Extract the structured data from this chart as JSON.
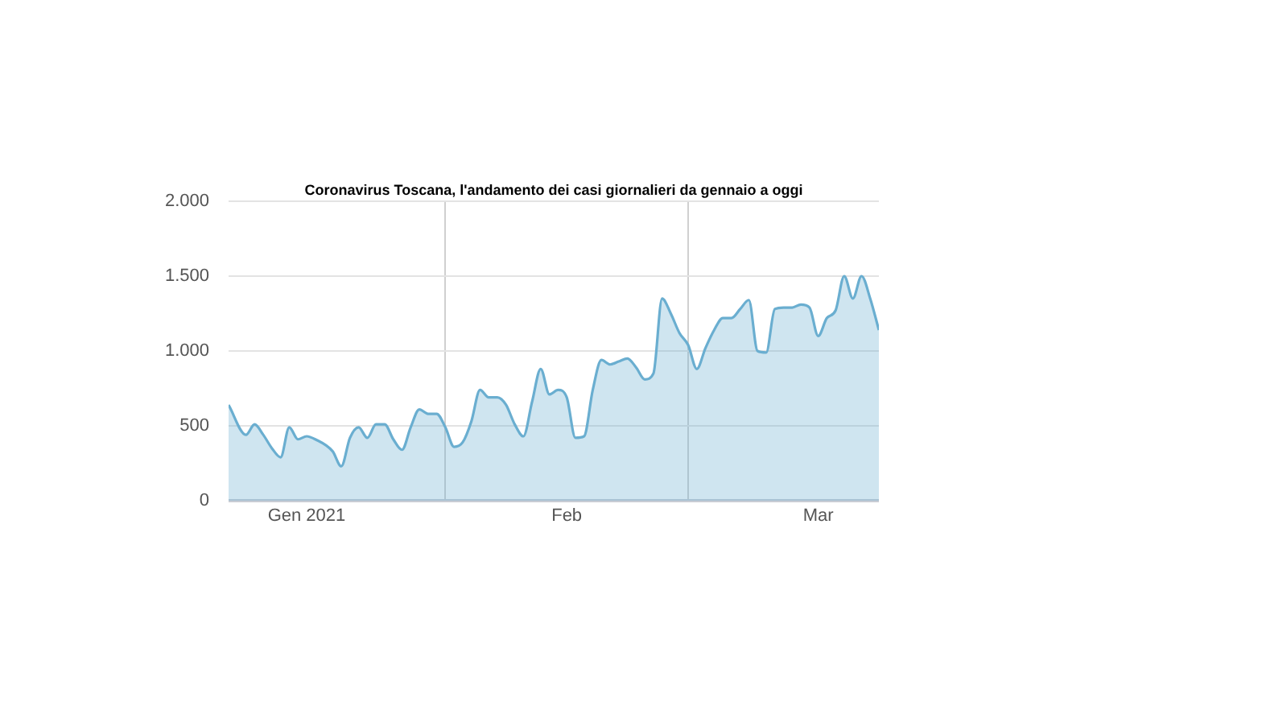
{
  "chart_data": {
    "type": "area",
    "title": "Coronavirus Toscana, l'andamento dei casi giornalieri da gennaio a oggi",
    "x": [
      "2021-01-07",
      "2021-01-09",
      "2021-01-10",
      "2021-01-11",
      "2021-01-12",
      "2021-01-13",
      "2021-01-14",
      "2021-01-15",
      "2021-01-16",
      "2021-01-17",
      "2021-01-19",
      "2021-01-20",
      "2021-01-21",
      "2021-01-22",
      "2021-01-23",
      "2021-01-24",
      "2021-01-25",
      "2021-01-26",
      "2021-01-27",
      "2021-01-28",
      "2021-01-29",
      "2021-01-30",
      "2021-01-31",
      "2021-02-01",
      "2021-02-02",
      "2021-02-03",
      "2021-02-04",
      "2021-02-05",
      "2021-02-06",
      "2021-02-07",
      "2021-02-08",
      "2021-02-09",
      "2021-02-10",
      "2021-02-11",
      "2021-02-12",
      "2021-02-13",
      "2021-02-14",
      "2021-02-15",
      "2021-02-16",
      "2021-02-17",
      "2021-02-18",
      "2021-02-19",
      "2021-02-20",
      "2021-02-21",
      "2021-02-22",
      "2021-02-23",
      "2021-02-24",
      "2021-02-25",
      "2021-02-26",
      "2021-02-27",
      "2021-02-28",
      "2021-03-01",
      "2021-03-02",
      "2021-03-03",
      "2021-03-04",
      "2021-03-05",
      "2021-03-06",
      "2021-03-07",
      "2021-03-08",
      "2021-03-09",
      "2021-03-10",
      "2021-03-11",
      "2021-03-12",
      "2021-03-13",
      "2021-03-14",
      "2021-03-15",
      "2021-03-16",
      "2021-03-17",
      "2021-03-18",
      "2021-03-19",
      "2021-03-20",
      "2021-03-21",
      "2021-03-22",
      "2021-03-23"
    ],
    "series": [
      {
        "color": "#6aaed0",
        "values": [
          640,
          440,
          510,
          440,
          350,
          290,
          490,
          410,
          430,
          410,
          330,
          230,
          420,
          490,
          420,
          510,
          510,
          410,
          340,
          490,
          610,
          580,
          580,
          490,
          360,
          390,
          530,
          740,
          690,
          690,
          640,
          510,
          430,
          660,
          880,
          710,
          740,
          690,
          420,
          430,
          740,
          940,
          910,
          930,
          950,
          890,
          810,
          850,
          1350,
          1250,
          1120,
          1040,
          880,
          1020,
          1140,
          1220,
          1220,
          1280,
          1340,
          1000,
          990,
          1280,
          1290,
          1290,
          1310,
          1290,
          1100,
          1220,
          1270,
          1500,
          1350,
          1500,
          1350,
          1140
        ]
      }
    ],
    "xlim": [
      "2021-01-07",
      "2021-03-23"
    ],
    "xticks": [
      {
        "value": "2021-01-16",
        "label": "Gen 2021"
      },
      {
        "value": "2021-02-01",
        "label": null
      },
      {
        "value": "2021-02-15",
        "label": "Feb"
      },
      {
        "value": "2021-03-01",
        "label": null
      },
      {
        "value": "2021-03-16",
        "label": "Mar"
      }
    ],
    "ylim": [
      0,
      2000
    ],
    "yticks": [
      0,
      500,
      {
        "value": 1000,
        "label": "1.000"
      },
      {
        "value": 1500,
        "label": "1.500"
      },
      {
        "value": 2000,
        "label": "2.000"
      }
    ],
    "grid": true,
    "legend": false,
    "marker": "none",
    "line_style": "solid"
  }
}
